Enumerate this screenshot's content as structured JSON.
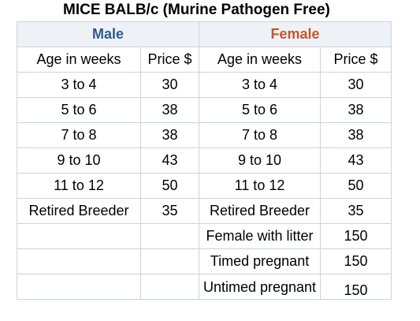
{
  "title": "MICE BALB/c (Murine Pathogen Free)",
  "male_header": "Male",
  "female_header": "Female",
  "columns": {
    "male_age": "Age in weeks",
    "male_price": "Price $",
    "female_age": "Age in weeks",
    "female_price": "Price $"
  },
  "rows": [
    {
      "male_age": "3 to 4",
      "male_price": "30",
      "female_age": "3 to 4",
      "female_price": "30"
    },
    {
      "male_age": "5 to 6",
      "male_price": "38",
      "female_age": "5 to 6",
      "female_price": "38"
    },
    {
      "male_age": "7 to 8",
      "male_price": "38",
      "female_age": "7 to 8",
      "female_price": "38"
    },
    {
      "male_age": "9 to 10",
      "male_price": "43",
      "female_age": "9 to 10",
      "female_price": "43"
    },
    {
      "male_age": "11 to 12",
      "male_price": "50",
      "female_age": "11 to 12",
      "female_price": "50"
    },
    {
      "male_age": "Retired Breeder",
      "male_price": "35",
      "female_age": "Retired Breeder",
      "female_price": "35"
    },
    {
      "male_age": "",
      "male_price": "",
      "female_age": "Female with litter",
      "female_price": "150"
    },
    {
      "male_age": "",
      "male_price": "",
      "female_age": "Timed pregnant",
      "female_price": "150"
    },
    {
      "male_age": "",
      "male_price": "",
      "female_age": "Untimed pregnant",
      "female_price": "150"
    }
  ],
  "colors": {
    "male_header": "#2f5b8f",
    "female_header": "#c0582a",
    "header_bg": "#eef1f6",
    "grid": "#c9d3e0"
  }
}
